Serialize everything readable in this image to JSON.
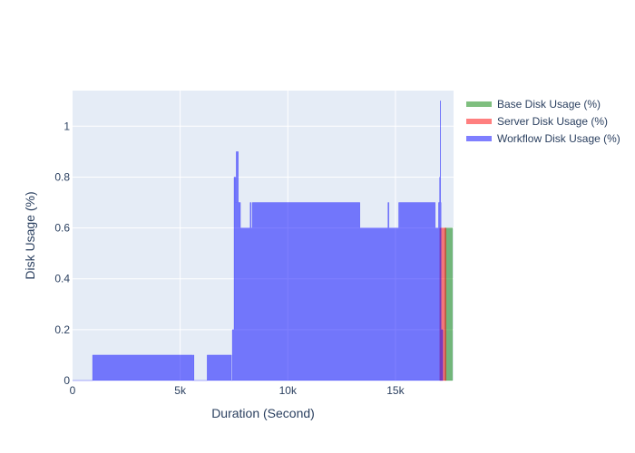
{
  "chart_data": {
    "type": "area",
    "title": "",
    "xlabel": "Duration (Second)",
    "ylabel": "Disk Usage (%)",
    "xlim": [
      0,
      17700
    ],
    "ylim": [
      0,
      1.14
    ],
    "x_ticks": [
      {
        "value": 0,
        "label": "0"
      },
      {
        "value": 5000,
        "label": "5k"
      },
      {
        "value": 10000,
        "label": "10k"
      },
      {
        "value": 15000,
        "label": "15k"
      }
    ],
    "y_ticks": [
      {
        "value": 0,
        "label": "0"
      },
      {
        "value": 0.2,
        "label": "0.2"
      },
      {
        "value": 0.4,
        "label": "0.4"
      },
      {
        "value": 0.6,
        "label": "0.6"
      },
      {
        "value": 0.8,
        "label": "0.8"
      },
      {
        "value": 1,
        "label": "1"
      }
    ],
    "grid": true,
    "legend_position": "top-right",
    "series": [
      {
        "name": "Base Disk Usage (%)",
        "color": "#008000",
        "x": [
          17300,
          17650
        ],
        "y": [
          0.6,
          0.6
        ]
      },
      {
        "name": "Server Disk Usage (%)",
        "color": "#ff0000",
        "x": [
          17060,
          17350
        ],
        "y": [
          0.6,
          0.6
        ]
      },
      {
        "name": "Workflow Disk Usage (%)",
        "color": "#0000ff",
        "x": [
          0,
          880,
          930,
          5550,
          5580,
          5600,
          5620,
          5640,
          5660,
          6200,
          6250,
          7350,
          7380,
          7420,
          7450,
          7500,
          7580,
          7600,
          7700,
          7720,
          7800,
          8200,
          8250,
          8300,
          8350,
          13300,
          13350,
          14600,
          14650,
          14700,
          14750,
          15100,
          15150,
          16800,
          16850,
          16950,
          17000,
          17050,
          17080,
          17100,
          17120,
          17200
        ],
        "y": [
          0,
          0,
          0.1,
          0.1,
          0,
          0.1,
          0.1,
          0,
          0,
          0,
          0.1,
          0.1,
          0,
          0.2,
          0.2,
          0.8,
          0.7,
          0.9,
          0.7,
          0.7,
          0.6,
          0.6,
          0.7,
          0.6,
          0.7,
          0.7,
          0.6,
          0.6,
          0.7,
          0.6,
          0.6,
          0.6,
          0.7,
          0.7,
          0.6,
          0.6,
          0.7,
          0.8,
          1.1,
          0.7,
          0.2,
          0
        ]
      }
    ]
  }
}
